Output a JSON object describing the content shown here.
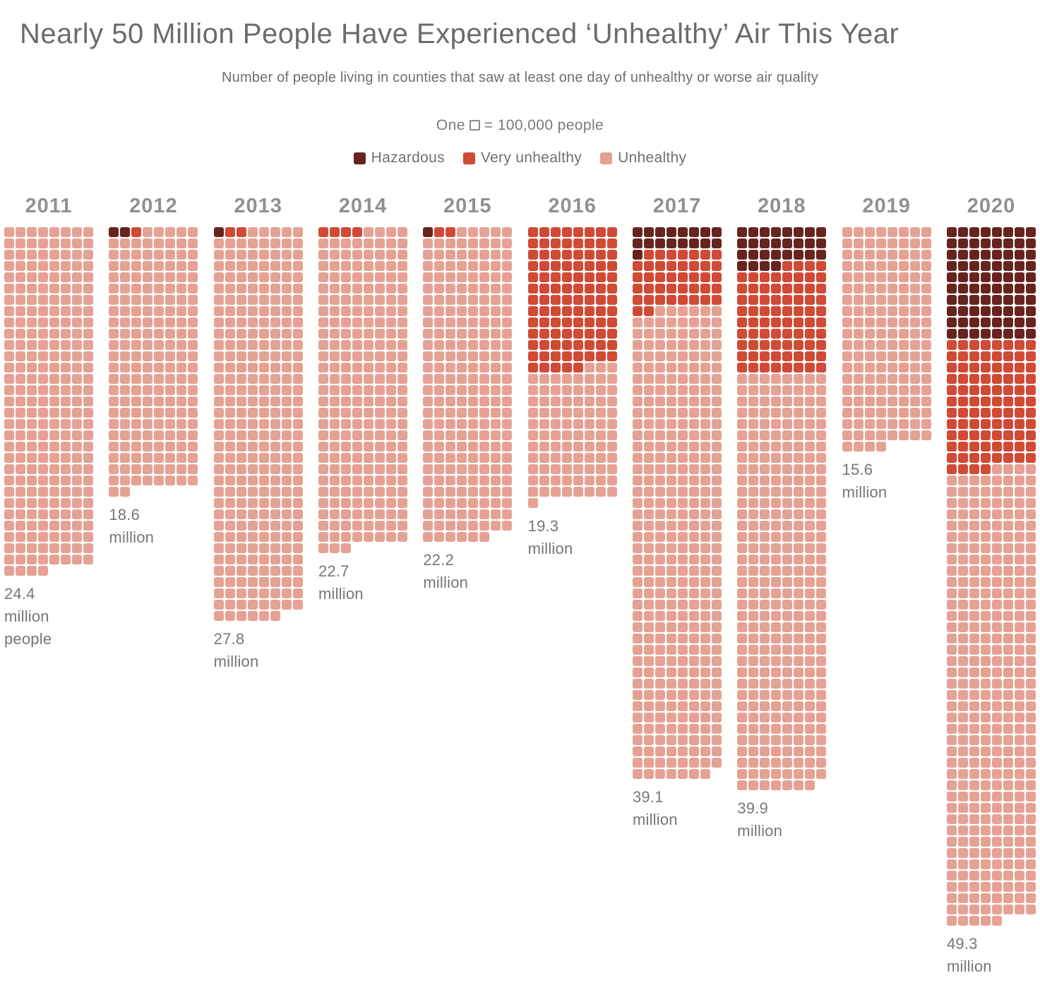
{
  "chart_data": {
    "type": "waffle",
    "title": "Nearly 50 Million People Have Experienced ‘Unhealthy’ Air This Year",
    "subtitle": "Number of people living in counties that saw at least one day of unhealthy or worse air quality",
    "key": {
      "prefix": "One",
      "suffix": "= 100,000 people"
    },
    "unit_per_square": 100000,
    "grid_columns_per_year": 8,
    "fill_order": [
      "hazardous",
      "very_unhealthy",
      "unhealthy"
    ],
    "legend": [
      {
        "id": "hazardous",
        "label": "Hazardous",
        "color": "#67241f"
      },
      {
        "id": "very_unhealthy",
        "label": "Very unhealthy",
        "color": "#d04a35"
      },
      {
        "id": "unhealthy",
        "label": "Unhealthy",
        "color": "#e5a294"
      }
    ],
    "years": [
      {
        "year": "2011",
        "label": "24.4 million people",
        "total_millions": 24.4,
        "squares": {
          "hazardous": 0,
          "very_unhealthy": 0,
          "unhealthy": 244
        }
      },
      {
        "year": "2012",
        "label": "18.6 million",
        "total_millions": 18.6,
        "squares": {
          "hazardous": 2,
          "very_unhealthy": 1,
          "unhealthy": 183
        }
      },
      {
        "year": "2013",
        "label": "27.8 million",
        "total_millions": 27.8,
        "squares": {
          "hazardous": 1,
          "very_unhealthy": 2,
          "unhealthy": 275
        }
      },
      {
        "year": "2014",
        "label": "22.7 million",
        "total_millions": 22.7,
        "squares": {
          "hazardous": 0,
          "very_unhealthy": 4,
          "unhealthy": 223
        }
      },
      {
        "year": "2015",
        "label": "22.2 million",
        "total_millions": 22.2,
        "squares": {
          "hazardous": 1,
          "very_unhealthy": 2,
          "unhealthy": 219
        }
      },
      {
        "year": "2016",
        "label": "19.3 million",
        "total_millions": 19.3,
        "squares": {
          "hazardous": 0,
          "very_unhealthy": 101,
          "unhealthy": 92
        }
      },
      {
        "year": "2017",
        "label": "39.1 million",
        "total_millions": 39.1,
        "squares": {
          "hazardous": 17,
          "very_unhealthy": 41,
          "unhealthy": 333
        }
      },
      {
        "year": "2018",
        "label": "39.9 million",
        "total_millions": 39.9,
        "squares": {
          "hazardous": 28,
          "very_unhealthy": 76,
          "unhealthy": 295
        }
      },
      {
        "year": "2019",
        "label": "15.6 million",
        "total_millions": 15.6,
        "squares": {
          "hazardous": 0,
          "very_unhealthy": 0,
          "unhealthy": 156
        }
      },
      {
        "year": "2020",
        "label": "49.3 million",
        "total_millions": 49.3,
        "squares": {
          "hazardous": 80,
          "very_unhealthy": 92,
          "unhealthy": 321
        }
      }
    ]
  }
}
